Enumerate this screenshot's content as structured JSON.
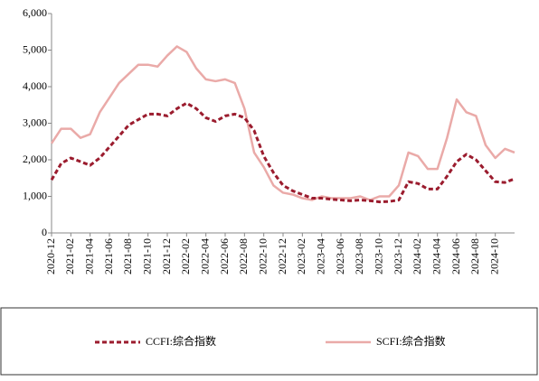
{
  "chart_data": {
    "type": "line",
    "categories": [
      "2020-12",
      null,
      "2021-02",
      null,
      "2021-04",
      null,
      "2021-06",
      null,
      "2021-08",
      null,
      "2021-10",
      null,
      "2021-12",
      null,
      "2022-02",
      null,
      "2022-04",
      null,
      "2022-06",
      null,
      "2022-08",
      null,
      "2022-10",
      null,
      "2022-12",
      null,
      "2023-02",
      null,
      "2023-04",
      null,
      "2023-06",
      null,
      "2023-08",
      null,
      "2023-10",
      null,
      "2023-12",
      null,
      "2024-02",
      null,
      "2024-04",
      null,
      "2024-06",
      null,
      "2024-08",
      null,
      "2024-10",
      null,
      null
    ],
    "series": [
      {
        "name": "CCFI:综合指数",
        "color": "#9b1c2e",
        "dash": true,
        "values": [
          1450,
          1900,
          2050,
          1950,
          1850,
          2050,
          2350,
          2650,
          2950,
          3100,
          3250,
          3250,
          3200,
          3400,
          3550,
          3400,
          3150,
          3050,
          3200,
          3250,
          3150,
          2800,
          2100,
          1650,
          1300,
          1150,
          1050,
          950,
          950,
          920,
          900,
          880,
          900,
          880,
          850,
          860,
          900,
          1400,
          1350,
          1200,
          1200,
          1550,
          1950,
          2150,
          2000,
          1700,
          1400,
          1380,
          1480
        ]
      },
      {
        "name": "SCFI:综合指数",
        "color": "#eaaaa8",
        "dash": false,
        "values": [
          2450,
          2850,
          2850,
          2600,
          2700,
          3300,
          3700,
          4100,
          4350,
          4600,
          4600,
          4550,
          4850,
          5100,
          4950,
          4500,
          4200,
          4150,
          4200,
          4100,
          3400,
          2200,
          1800,
          1300,
          1100,
          1050,
          950,
          900,
          1000,
          950,
          950,
          950,
          1000,
          900,
          1000,
          1000,
          1300,
          2200,
          2100,
          1750,
          1750,
          2600,
          3650,
          3300,
          3200,
          2400,
          2050,
          2300,
          2200
        ]
      }
    ],
    "ylim": [
      0,
      6000
    ],
    "yticks": [
      0,
      {
        "value": 1000,
        "label": "1,000"
      },
      {
        "value": 2000,
        "label": "2,000"
      },
      {
        "value": 3000,
        "label": "3,000"
      },
      {
        "value": 4000,
        "label": "4,000"
      },
      {
        "value": 5000,
        "label": "5,000"
      },
      {
        "value": 6000,
        "label": "6,000"
      }
    ]
  }
}
